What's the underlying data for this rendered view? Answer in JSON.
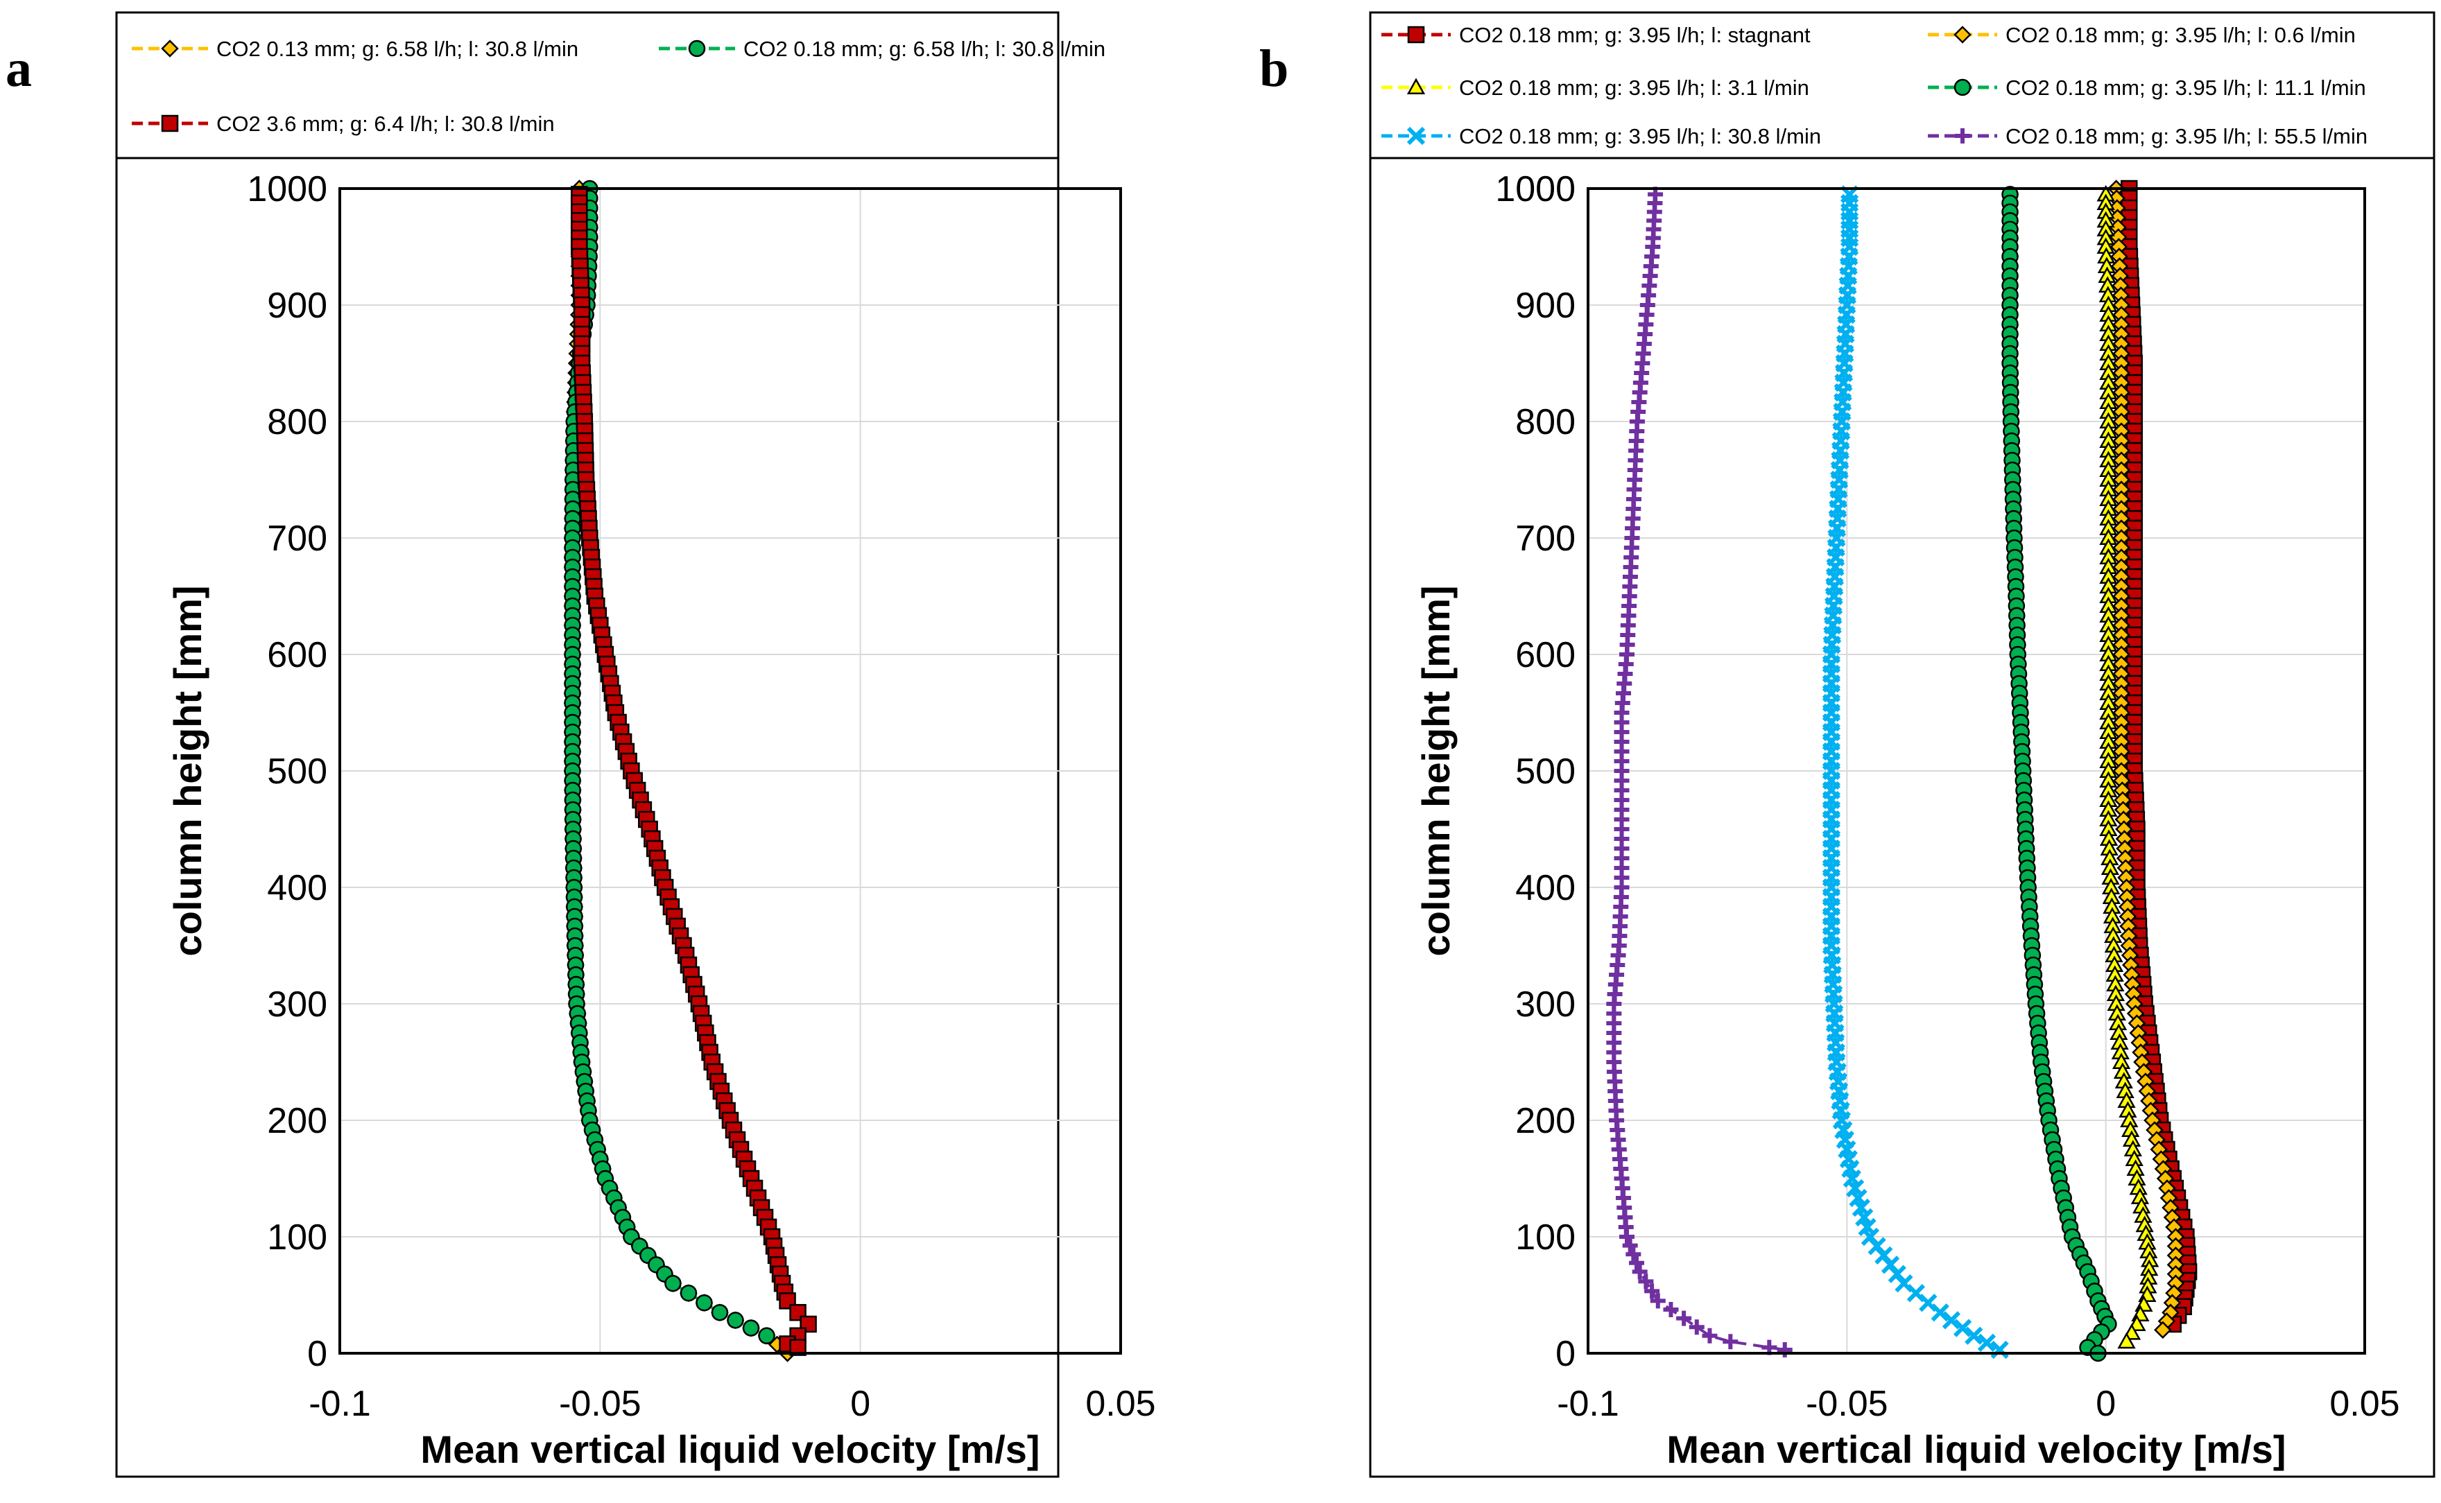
{
  "panels": {
    "a_label": "a",
    "b_label": "b"
  },
  "chart_data": [
    {
      "id": "a",
      "type": "scatter",
      "title": "",
      "xlabel": "Mean vertical liquid velocity  [m/s]",
      "ylabel": "column height [mm]",
      "xlim": [
        -0.1,
        0.05
      ],
      "ylim": [
        0,
        1000
      ],
      "x_ticks": [
        -0.1,
        -0.05,
        0,
        0.05
      ],
      "x_tick_labels": [
        "-0.1",
        "-0.05",
        "0",
        "0.05"
      ],
      "y_ticks": [
        0,
        100,
        200,
        300,
        400,
        500,
        600,
        700,
        800,
        900,
        1000
      ],
      "y_tick_labels": [
        "0",
        "100",
        "200",
        "300",
        "400",
        "500",
        "600",
        "700",
        "800",
        "900",
        "1000"
      ],
      "grid": true,
      "legend_position": "top",
      "series": [
        {
          "name": "CO2 0.13 mm; g: 6.58 l/h; l: 30.8 l/min",
          "color": "#FFC000",
          "marker": "diamond",
          "points": [
            [
              -0.054,
              1000
            ],
            [
              -0.054,
              950
            ],
            [
              -0.054,
              900
            ],
            [
              -0.0545,
              850
            ],
            [
              -0.055,
              800
            ],
            [
              -0.0552,
              750
            ],
            [
              -0.0553,
              700
            ],
            [
              -0.0553,
              650
            ],
            [
              -0.0553,
              600
            ],
            [
              -0.0553,
              550
            ],
            [
              -0.0553,
              500
            ],
            [
              -0.0552,
              450
            ],
            [
              -0.055,
              400
            ],
            [
              -0.0548,
              350
            ],
            [
              -0.0545,
              300
            ],
            [
              -0.0535,
              250
            ],
            [
              -0.052,
              200
            ],
            [
              -0.049,
              150
            ],
            [
              -0.044,
              100
            ],
            [
              -0.036,
              60
            ],
            [
              -0.027,
              35
            ],
            [
              -0.018,
              15
            ],
            [
              -0.014,
              0
            ]
          ]
        },
        {
          "name": "CO2 0.18 mm; g: 6.58 l/h; l: 30.8 l/min",
          "color": "#00B050",
          "marker": "circle",
          "points": [
            [
              -0.052,
              1000
            ],
            [
              -0.052,
              950
            ],
            [
              -0.0525,
              900
            ],
            [
              -0.054,
              850
            ],
            [
              -0.055,
              800
            ],
            [
              -0.0552,
              750
            ],
            [
              -0.0553,
              700
            ],
            [
              -0.0553,
              650
            ],
            [
              -0.0553,
              600
            ],
            [
              -0.0553,
              550
            ],
            [
              -0.0553,
              500
            ],
            [
              -0.0552,
              450
            ],
            [
              -0.055,
              400
            ],
            [
              -0.0548,
              350
            ],
            [
              -0.0545,
              300
            ],
            [
              -0.0535,
              250
            ],
            [
              -0.052,
              200
            ],
            [
              -0.049,
              150
            ],
            [
              -0.044,
              100
            ],
            [
              -0.036,
              60
            ],
            [
              -0.027,
              35
            ],
            [
              -0.018,
              15
            ]
          ]
        },
        {
          "name": "CO2 3.6 mm; g: 6.4 l/h; l: 30.8 l/min",
          "color": "#C00000",
          "marker": "square",
          "points": [
            [
              -0.054,
              995
            ],
            [
              -0.054,
              950
            ],
            [
              -0.0535,
              900
            ],
            [
              -0.0535,
              850
            ],
            [
              -0.053,
              800
            ],
            [
              -0.0527,
              750
            ],
            [
              -0.052,
              700
            ],
            [
              -0.051,
              650
            ],
            [
              -0.049,
              600
            ],
            [
              -0.047,
              550
            ],
            [
              -0.044,
              500
            ],
            [
              -0.0405,
              450
            ],
            [
              -0.0375,
              400
            ],
            [
              -0.034,
              350
            ],
            [
              -0.031,
              300
            ],
            [
              -0.0285,
              250
            ],
            [
              -0.025,
              200
            ],
            [
              -0.021,
              150
            ],
            [
              -0.017,
              100
            ],
            [
              -0.015,
              60
            ],
            [
              -0.014,
              45
            ],
            [
              -0.012,
              35
            ],
            [
              -0.01,
              25
            ],
            [
              -0.012,
              15
            ],
            [
              -0.014,
              8
            ],
            [
              -0.012,
              5
            ]
          ]
        }
      ]
    },
    {
      "id": "b",
      "type": "scatter",
      "title": "",
      "xlabel": "Mean vertical liquid velocity  [m/s]",
      "ylabel": "column height [mm]",
      "xlim": [
        -0.1,
        0.05
      ],
      "ylim": [
        0,
        1000
      ],
      "x_ticks": [
        -0.1,
        -0.05,
        0,
        0.05
      ],
      "x_tick_labels": [
        "-0.1",
        "-0.05",
        "0",
        "0.05"
      ],
      "y_ticks": [
        0,
        100,
        200,
        300,
        400,
        500,
        600,
        700,
        800,
        900,
        1000
      ],
      "y_tick_labels": [
        "0",
        "100",
        "200",
        "300",
        "400",
        "500",
        "600",
        "700",
        "800",
        "900",
        "1000"
      ],
      "grid": true,
      "legend_position": "top",
      "series": [
        {
          "name": "CO2 0.18 mm; g: 3.95 l/h; l: stagnant",
          "color": "#C00000",
          "marker": "square",
          "points": [
            [
              0.0045,
              1000
            ],
            [
              0.0045,
              950
            ],
            [
              0.005,
              900
            ],
            [
              0.0055,
              850
            ],
            [
              0.0055,
              800
            ],
            [
              0.0055,
              750
            ],
            [
              0.0055,
              700
            ],
            [
              0.0055,
              650
            ],
            [
              0.0055,
              600
            ],
            [
              0.0055,
              550
            ],
            [
              0.0055,
              500
            ],
            [
              0.006,
              450
            ],
            [
              0.006,
              400
            ],
            [
              0.0065,
              350
            ],
            [
              0.0075,
              300
            ],
            [
              0.009,
              250
            ],
            [
              0.0105,
              200
            ],
            [
              0.013,
              150
            ],
            [
              0.0155,
              100
            ],
            [
              0.016,
              70
            ],
            [
              0.015,
              40
            ],
            [
              0.013,
              25
            ]
          ]
        },
        {
          "name": "CO2 0.18 mm; g: 3.95 l/h; l: 0.6 l/min",
          "color": "#FFC000",
          "marker": "diamond",
          "points": [
            [
              0.002,
              1000
            ],
            [
              0.0025,
              950
            ],
            [
              0.003,
              900
            ],
            [
              0.003,
              850
            ],
            [
              0.003,
              800
            ],
            [
              0.003,
              750
            ],
            [
              0.003,
              700
            ],
            [
              0.003,
              650
            ],
            [
              0.003,
              600
            ],
            [
              0.003,
              550
            ],
            [
              0.003,
              500
            ],
            [
              0.0035,
              450
            ],
            [
              0.004,
              400
            ],
            [
              0.0045,
              350
            ],
            [
              0.0055,
              300
            ],
            [
              0.007,
              250
            ],
            [
              0.009,
              200
            ],
            [
              0.0115,
              150
            ],
            [
              0.0135,
              100
            ],
            [
              0.0135,
              60
            ],
            [
              0.0125,
              35
            ],
            [
              0.011,
              20
            ]
          ]
        },
        {
          "name": "CO2 0.18 mm; g: 3.95 l/h; l: 3.1 l/min",
          "color": "#FFFF00",
          "marker": "triangle",
          "points": [
            [
              0.0,
              995
            ],
            [
              0.0,
              950
            ],
            [
              0.0005,
              900
            ],
            [
              0.0005,
              850
            ],
            [
              0.0005,
              800
            ],
            [
              0.0005,
              750
            ],
            [
              0.0005,
              700
            ],
            [
              0.0005,
              650
            ],
            [
              0.0005,
              600
            ],
            [
              0.0005,
              550
            ],
            [
              0.0005,
              500
            ],
            [
              0.0005,
              450
            ],
            [
              0.001,
              400
            ],
            [
              0.0015,
              350
            ],
            [
              0.002,
              300
            ],
            [
              0.003,
              250
            ],
            [
              0.0045,
              200
            ],
            [
              0.006,
              150
            ],
            [
              0.0075,
              110
            ],
            [
              0.0085,
              80
            ],
            [
              0.008,
              50
            ],
            [
              0.006,
              25
            ],
            [
              0.004,
              10
            ]
          ]
        },
        {
          "name": "CO2 0.18 mm; g: 3.95 l/h; l: 11.1 l/min",
          "color": "#00B050",
          "marker": "circle",
          "points": [
            [
              -0.0185,
              995
            ],
            [
              -0.0185,
              950
            ],
            [
              -0.0185,
              900
            ],
            [
              -0.0185,
              850
            ],
            [
              -0.0183,
              800
            ],
            [
              -0.018,
              750
            ],
            [
              -0.0177,
              700
            ],
            [
              -0.0173,
              650
            ],
            [
              -0.017,
              600
            ],
            [
              -0.0165,
              550
            ],
            [
              -0.016,
              500
            ],
            [
              -0.0155,
              450
            ],
            [
              -0.015,
              400
            ],
            [
              -0.0143,
              350
            ],
            [
              -0.0135,
              300
            ],
            [
              -0.0125,
              250
            ],
            [
              -0.011,
              200
            ],
            [
              -0.009,
              150
            ],
            [
              -0.0065,
              100
            ],
            [
              -0.0035,
              70
            ],
            [
              -0.0015,
              45
            ],
            [
              0.0005,
              25
            ],
            [
              -0.0035,
              5
            ],
            [
              -0.0015,
              0
            ]
          ]
        },
        {
          "name": "CO2 0.18 mm; g: 3.95 l/h; l: 30.8 l/min",
          "color": "#00B0F0",
          "marker": "x",
          "points": [
            [
              -0.0495,
              995
            ],
            [
              -0.0495,
              950
            ],
            [
              -0.05,
              900
            ],
            [
              -0.0505,
              850
            ],
            [
              -0.051,
              800
            ],
            [
              -0.0515,
              750
            ],
            [
              -0.052,
              700
            ],
            [
              -0.0525,
              650
            ],
            [
              -0.053,
              600
            ],
            [
              -0.053,
              550
            ],
            [
              -0.053,
              500
            ],
            [
              -0.053,
              450
            ],
            [
              -0.053,
              400
            ],
            [
              -0.053,
              350
            ],
            [
              -0.0525,
              300
            ],
            [
              -0.052,
              250
            ],
            [
              -0.051,
              200
            ],
            [
              -0.049,
              150
            ],
            [
              -0.0455,
              100
            ],
            [
              -0.039,
              60
            ],
            [
              -0.032,
              35
            ],
            [
              -0.0255,
              15
            ],
            [
              -0.0205,
              3
            ]
          ]
        },
        {
          "name": "CO2 0.18 mm; g: 3.95 l/h; l: 55.5 l/min",
          "color": "#7030A0",
          "marker": "plus",
          "points": [
            [
              -0.087,
              995
            ],
            [
              -0.0875,
              950
            ],
            [
              -0.0885,
              900
            ],
            [
              -0.0895,
              850
            ],
            [
              -0.0905,
              800
            ],
            [
              -0.091,
              750
            ],
            [
              -0.0915,
              700
            ],
            [
              -0.092,
              650
            ],
            [
              -0.0925,
              600
            ],
            [
              -0.0935,
              550
            ],
            [
              -0.0935,
              500
            ],
            [
              -0.0935,
              450
            ],
            [
              -0.0935,
              400
            ],
            [
              -0.094,
              350
            ],
            [
              -0.095,
              300
            ],
            [
              -0.095,
              250
            ],
            [
              -0.0945,
              200
            ],
            [
              -0.0935,
              150
            ],
            [
              -0.0925,
              100
            ],
            [
              -0.09,
              70
            ],
            [
              -0.0865,
              45
            ],
            [
              -0.0815,
              30
            ],
            [
              -0.0765,
              15
            ],
            [
              -0.0725,
              10
            ],
            [
              -0.065,
              5
            ],
            [
              -0.062,
              3
            ]
          ]
        }
      ]
    }
  ]
}
